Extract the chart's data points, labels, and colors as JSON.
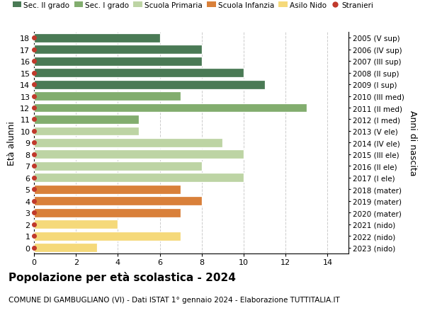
{
  "ages": [
    18,
    17,
    16,
    15,
    14,
    13,
    12,
    11,
    10,
    9,
    8,
    7,
    6,
    5,
    4,
    3,
    2,
    1,
    0
  ],
  "years": [
    "2005 (V sup)",
    "2006 (IV sup)",
    "2007 (III sup)",
    "2008 (II sup)",
    "2009 (I sup)",
    "2010 (III med)",
    "2011 (II med)",
    "2012 (I med)",
    "2013 (V ele)",
    "2014 (IV ele)",
    "2015 (III ele)",
    "2016 (II ele)",
    "2017 (I ele)",
    "2018 (mater)",
    "2019 (mater)",
    "2020 (mater)",
    "2021 (nido)",
    "2022 (nido)",
    "2023 (nido)"
  ],
  "values": [
    6,
    8,
    8,
    10,
    11,
    7,
    13,
    5,
    5,
    9,
    10,
    8,
    10,
    7,
    8,
    7,
    4,
    7,
    3
  ],
  "categories": [
    "Sec. II grado",
    "Sec. II grado",
    "Sec. II grado",
    "Sec. II grado",
    "Sec. II grado",
    "Sec. I grado",
    "Sec. I grado",
    "Sec. I grado",
    "Scuola Primaria",
    "Scuola Primaria",
    "Scuola Primaria",
    "Scuola Primaria",
    "Scuola Primaria",
    "Scuola Infanzia",
    "Scuola Infanzia",
    "Scuola Infanzia",
    "Asilo Nido",
    "Asilo Nido",
    "Asilo Nido"
  ],
  "colors": {
    "Sec. II grado": "#4a7a55",
    "Sec. I grado": "#82ad6e",
    "Scuola Primaria": "#bdd4a4",
    "Scuola Infanzia": "#d9803a",
    "Asilo Nido": "#f5d97a"
  },
  "stranieri_color": "#c0392b",
  "legend_order": [
    "Sec. II grado",
    "Sec. I grado",
    "Scuola Primaria",
    "Scuola Infanzia",
    "Asilo Nido",
    "Stranieri"
  ],
  "title": "Popolazione per età scolastica - 2024",
  "subtitle": "COMUNE DI GAMBUGLIANO (VI) - Dati ISTAT 1° gennaio 2024 - Elaborazione TUTTITALIA.IT",
  "ylabel_left": "Età alunni",
  "ylabel_right": "Anni di nascita",
  "xlim": [
    0,
    15
  ],
  "xticks": [
    0,
    2,
    4,
    6,
    8,
    10,
    12,
    14
  ],
  "background_color": "#ffffff",
  "grid_color": "#cccccc"
}
